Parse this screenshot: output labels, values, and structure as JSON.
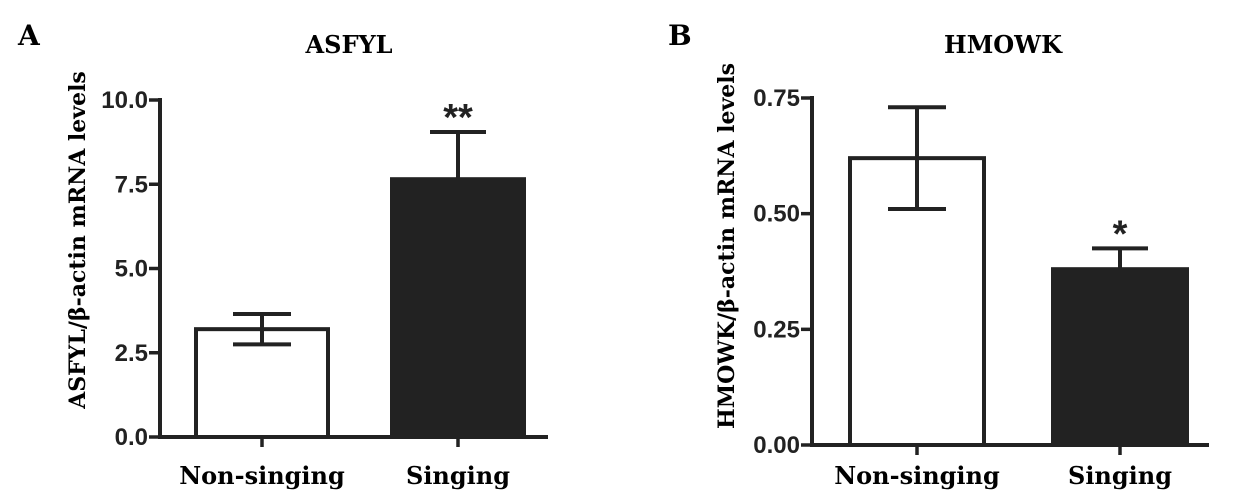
{
  "colors": {
    "axis": "#222222",
    "bar_outline": "#222222",
    "filled_bar": "#222222",
    "open_bar": "#ffffff"
  },
  "chart_data": [
    {
      "panel": "A",
      "type": "bar",
      "title": "ASFYL",
      "xlabel": "",
      "ylabel": "ASFYL/β-actin mRNA levels",
      "ylim": [
        0,
        10
      ],
      "yticks": [
        0,
        2.5,
        5,
        7.5,
        10
      ],
      "ytick_labels": [
        "0.0",
        "2.5",
        "5.0",
        "7.5",
        "10.0"
      ],
      "categories": [
        "Non-singing",
        "Singing"
      ],
      "values": [
        3.2,
        7.65
      ],
      "errors": [
        0.45,
        1.4
      ],
      "error_style": [
        "both",
        "up"
      ],
      "fills": [
        "#ffffff",
        "#222222"
      ],
      "significance": [
        "",
        "**"
      ],
      "grid": false
    },
    {
      "panel": "B",
      "type": "bar",
      "title": "HMOWK",
      "xlabel": "",
      "ylabel": "HMOWK/β-actin mRNA levels",
      "ylim": [
        0,
        0.75
      ],
      "yticks": [
        0,
        0.25,
        0.5,
        0.75
      ],
      "ytick_labels": [
        "0.00",
        "0.25",
        "0.50",
        "0.75"
      ],
      "categories": [
        "Non-singing",
        "Singing"
      ],
      "values": [
        0.62,
        0.38
      ],
      "errors": [
        0.11,
        0.045
      ],
      "error_style": [
        "both",
        "up"
      ],
      "fills": [
        "#ffffff",
        "#222222"
      ],
      "significance": [
        "",
        "*"
      ],
      "grid": false
    }
  ]
}
